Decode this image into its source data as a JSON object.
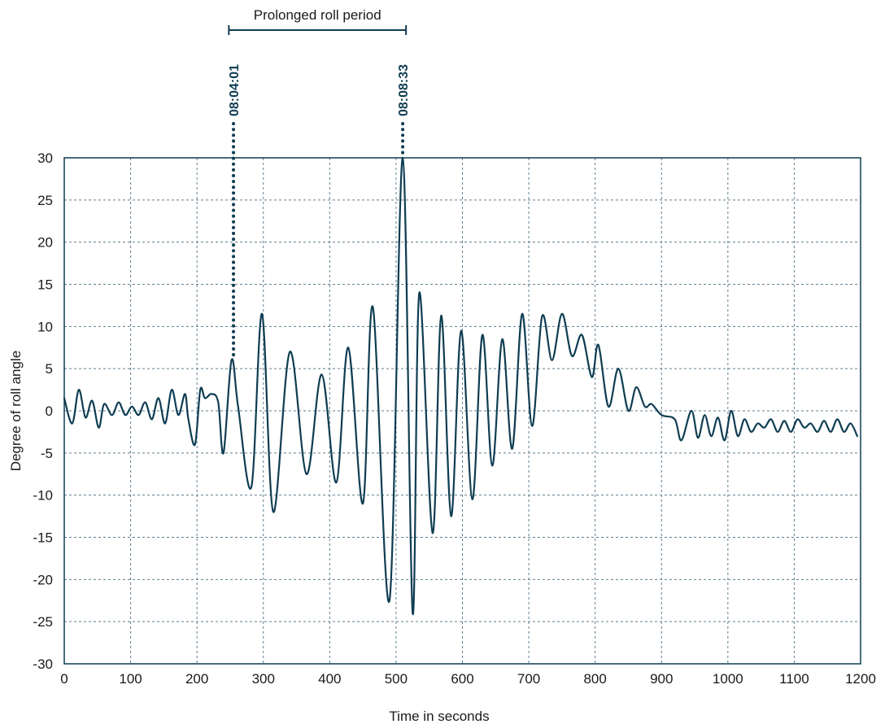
{
  "chart_data": {
    "type": "line",
    "xlabel": "Time in seconds",
    "ylabel": "Degree of roll angle",
    "xlim": [
      0,
      1200
    ],
    "ylim": [
      -30,
      30
    ],
    "x_ticks": [
      0,
      100,
      200,
      300,
      400,
      500,
      600,
      700,
      800,
      900,
      1000,
      1100,
      1200
    ],
    "y_ticks": [
      30,
      25,
      20,
      15,
      10,
      5,
      0,
      -5,
      -10,
      -15,
      -20,
      -25,
      -30
    ],
    "grid": true,
    "line_color": "#0f3d52",
    "series": [
      {
        "x": [
          0,
          12,
          22,
          32,
          42,
          52,
          60,
          72,
          82,
          92,
          102,
          112,
          122,
          132,
          142,
          152,
          162,
          172,
          182,
          187,
          197,
          205,
          212,
          222,
          232,
          240,
          252,
          262,
          282,
          298,
          315,
          340,
          365,
          388,
          410,
          428,
          450,
          465,
          490,
          510,
          525,
          535,
          555,
          568,
          583,
          598,
          615,
          630,
          645,
          660,
          675,
          690,
          705,
          720,
          735,
          750,
          765,
          780,
          795,
          805,
          820,
          835,
          850,
          862,
          875,
          885,
          900,
          920,
          930,
          945,
          955,
          965,
          975,
          985,
          995,
          1005,
          1015,
          1025,
          1035,
          1045,
          1055,
          1065,
          1075,
          1085,
          1095,
          1105,
          1115,
          1125,
          1135,
          1145,
          1155,
          1165,
          1175,
          1185,
          1195
        ],
        "y": [
          1.5,
          -1.5,
          2.5,
          -0.8,
          1.2,
          -2.0,
          0.8,
          -0.5,
          1.0,
          -0.5,
          0.5,
          -0.5,
          1.0,
          -1.0,
          1.5,
          -1.5,
          2.5,
          -0.5,
          2.0,
          -1.0,
          -4.0,
          2.5,
          1.5,
          2.0,
          1.0,
          -5.0,
          6.0,
          0.5,
          -9.0,
          11.5,
          -12.0,
          7.0,
          -7.5,
          4.3,
          -8.5,
          7.5,
          -11.0,
          12.3,
          -22.5,
          30.0,
          -24.0,
          14.0,
          -14.5,
          11.3,
          -12.5,
          9.5,
          -10.5,
          9.0,
          -6.5,
          8.5,
          -4.5,
          11.5,
          -1.8,
          11.2,
          6.0,
          11.5,
          6.5,
          9.0,
          4.0,
          7.8,
          0.5,
          5.0,
          0.0,
          2.8,
          0.5,
          0.8,
          -0.5,
          -1.0,
          -3.5,
          0.0,
          -3.2,
          -0.5,
          -3.0,
          -0.8,
          -3.5,
          0.0,
          -3.0,
          -1.0,
          -2.5,
          -1.5,
          -2.0,
          -1.0,
          -2.5,
          -1.2,
          -2.5,
          -1.0,
          -2.0,
          -1.5,
          -2.5,
          -1.2,
          -2.5,
          -1.0,
          -2.5,
          -1.5,
          -3.0
        ]
      }
    ],
    "annotations": {
      "bracket_label": "Prolonged roll period",
      "bracket_x": [
        248,
        515
      ],
      "markers": [
        {
          "label": "08:04:01",
          "x": 255,
          "y": 6.0
        },
        {
          "label": "08:08:33",
          "x": 510,
          "y": 30.0
        }
      ]
    }
  }
}
